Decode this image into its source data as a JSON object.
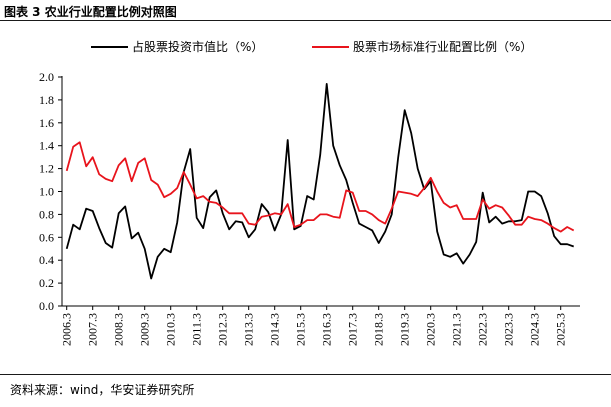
{
  "title": "图表 3  农业行业配置比例对照图",
  "source": "资料来源：wind，华安证券研究所",
  "chart_data": {
    "type": "line",
    "title": "农业行业配置比例对照图",
    "xlabel": "",
    "ylabel": "",
    "ylim": [
      0,
      2.0
    ],
    "yticks": [
      "0.0",
      "0.2",
      "0.4",
      "0.6",
      "0.8",
      "1.0",
      "1.2",
      "1.4",
      "1.6",
      "1.8",
      "2.0"
    ],
    "xticks": [
      "2006.3",
      "2007.3",
      "2008.3",
      "2009.3",
      "2010.3",
      "2011.3",
      "2012.3",
      "2013.3",
      "2014.3",
      "2015.3",
      "2016.3",
      "2017.3",
      "2018.3",
      "2019.3",
      "2020.3",
      "2021.3",
      "2022.3",
      "2023.3",
      "2024.3",
      "2025.3"
    ],
    "x_start": "2006Q1",
    "x_frequency": "quarterly",
    "grid": false,
    "legend": "top",
    "series": [
      {
        "name": "占股票投资市值比（%）",
        "color": "#000000",
        "values": [
          0.5,
          0.71,
          0.67,
          0.85,
          0.83,
          0.68,
          0.55,
          0.51,
          0.81,
          0.87,
          0.59,
          0.64,
          0.5,
          0.24,
          0.43,
          0.5,
          0.47,
          0.73,
          1.17,
          1.37,
          0.77,
          0.68,
          0.95,
          1.01,
          0.81,
          0.67,
          0.74,
          0.73,
          0.6,
          0.67,
          0.89,
          0.82,
          0.66,
          0.8,
          1.45,
          0.67,
          0.7,
          0.96,
          0.93,
          1.32,
          1.94,
          1.4,
          1.23,
          1.1,
          0.9,
          0.72,
          0.69,
          0.66,
          0.55,
          0.65,
          0.8,
          1.3,
          1.71,
          1.51,
          1.2,
          1.02,
          1.09,
          0.65,
          0.45,
          0.43,
          0.46,
          0.37,
          0.45,
          0.56,
          0.99,
          0.73,
          0.78,
          0.72,
          0.74,
          0.74,
          0.75,
          1.0,
          1.0,
          0.96,
          0.81,
          0.61,
          0.54,
          0.54,
          0.52
        ]
      },
      {
        "name": "股票市场标准行业配置比例（%）",
        "color": "#e8141c",
        "values": [
          1.18,
          1.39,
          1.43,
          1.22,
          1.3,
          1.15,
          1.11,
          1.09,
          1.23,
          1.29,
          1.09,
          1.25,
          1.29,
          1.1,
          1.06,
          0.95,
          0.98,
          1.03,
          1.17,
          1.06,
          0.94,
          0.96,
          0.91,
          0.9,
          0.86,
          0.81,
          0.81,
          0.81,
          0.72,
          0.71,
          0.78,
          0.79,
          0.81,
          0.8,
          0.89,
          0.69,
          0.71,
          0.75,
          0.75,
          0.8,
          0.8,
          0.78,
          0.77,
          1.01,
          0.99,
          0.83,
          0.83,
          0.8,
          0.75,
          0.72,
          0.85,
          1.0,
          0.99,
          0.98,
          0.96,
          1.03,
          1.12,
          1.0,
          0.9,
          0.86,
          0.88,
          0.76,
          0.76,
          0.76,
          0.93,
          0.85,
          0.88,
          0.86,
          0.79,
          0.71,
          0.71,
          0.78,
          0.76,
          0.75,
          0.72,
          0.68,
          0.65,
          0.69,
          0.66
        ]
      }
    ]
  }
}
